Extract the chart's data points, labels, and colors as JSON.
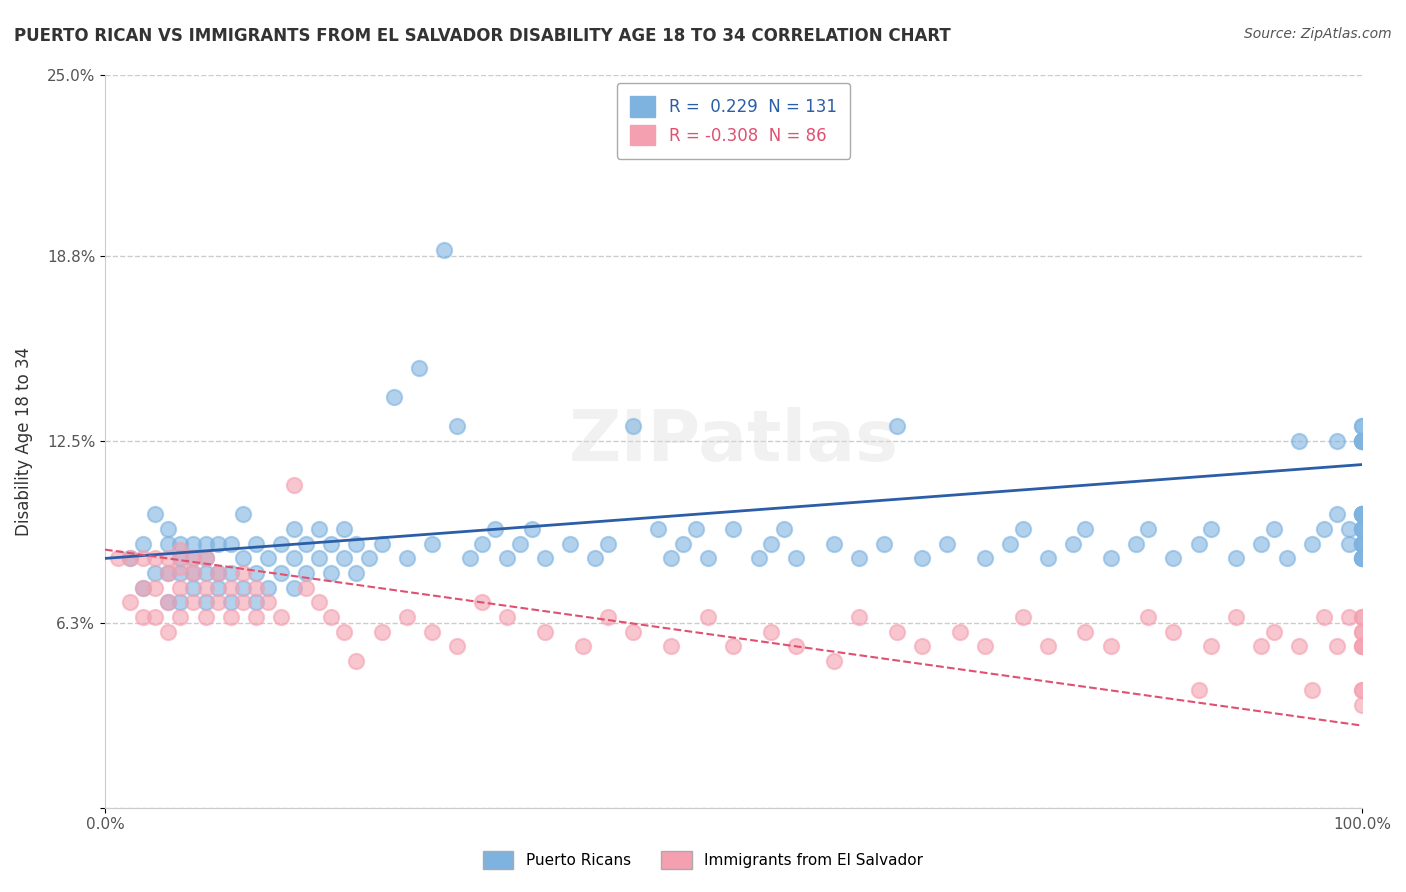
{
  "title": "PUERTO RICAN VS IMMIGRANTS FROM EL SALVADOR DISABILITY AGE 18 TO 34 CORRELATION CHART",
  "source": "Source: ZipAtlas.com",
  "xlabel": "",
  "ylabel": "Disability Age 18 to 34",
  "xlim": [
    0,
    1.0
  ],
  "ylim": [
    0,
    0.25
  ],
  "yticks": [
    0.0,
    0.063,
    0.125,
    0.188,
    0.25
  ],
  "ytick_labels": [
    "",
    "6.3%",
    "12.5%",
    "18.8%",
    "25.0%"
  ],
  "xtick_labels": [
    "0.0%",
    "100.0%"
  ],
  "blue_R": 0.229,
  "blue_N": 131,
  "pink_R": -0.308,
  "pink_N": 86,
  "blue_color": "#7EB3E0",
  "pink_color": "#F4A0B0",
  "blue_line_color": "#2B5EA7",
  "pink_line_color": "#E05070",
  "background_color": "#FFFFFF",
  "grid_color": "#CCCCCC",
  "watermark": "ZIPatlas",
  "legend_label_blue": "Puerto Ricans",
  "legend_label_pink": "Immigrants from El Salvador",
  "blue_scatter_x": [
    0.02,
    0.03,
    0.03,
    0.04,
    0.04,
    0.05,
    0.05,
    0.05,
    0.05,
    0.06,
    0.06,
    0.06,
    0.06,
    0.07,
    0.07,
    0.07,
    0.07,
    0.08,
    0.08,
    0.08,
    0.08,
    0.09,
    0.09,
    0.09,
    0.1,
    0.1,
    0.1,
    0.11,
    0.11,
    0.11,
    0.12,
    0.12,
    0.12,
    0.13,
    0.13,
    0.14,
    0.14,
    0.15,
    0.15,
    0.15,
    0.16,
    0.16,
    0.17,
    0.17,
    0.18,
    0.18,
    0.19,
    0.19,
    0.2,
    0.2,
    0.21,
    0.22,
    0.23,
    0.24,
    0.25,
    0.26,
    0.27,
    0.28,
    0.29,
    0.3,
    0.31,
    0.32,
    0.33,
    0.34,
    0.35,
    0.37,
    0.39,
    0.4,
    0.42,
    0.44,
    0.45,
    0.46,
    0.47,
    0.48,
    0.5,
    0.52,
    0.53,
    0.54,
    0.55,
    0.58,
    0.6,
    0.62,
    0.63,
    0.65,
    0.67,
    0.7,
    0.72,
    0.73,
    0.75,
    0.77,
    0.78,
    0.8,
    0.82,
    0.83,
    0.85,
    0.87,
    0.88,
    0.9,
    0.92,
    0.93,
    0.94,
    0.95,
    0.96,
    0.97,
    0.98,
    0.98,
    0.99,
    0.99,
    1.0,
    1.0,
    1.0,
    1.0,
    1.0,
    1.0,
    1.0,
    1.0,
    1.0,
    1.0,
    1.0,
    1.0,
    1.0,
    1.0,
    1.0,
    1.0,
    1.0,
    1.0,
    1.0,
    1.0,
    1.0,
    1.0,
    1.0
  ],
  "blue_scatter_y": [
    0.085,
    0.075,
    0.09,
    0.08,
    0.1,
    0.07,
    0.08,
    0.09,
    0.095,
    0.07,
    0.08,
    0.085,
    0.09,
    0.075,
    0.08,
    0.085,
    0.09,
    0.07,
    0.08,
    0.085,
    0.09,
    0.075,
    0.08,
    0.09,
    0.07,
    0.08,
    0.09,
    0.075,
    0.085,
    0.1,
    0.07,
    0.08,
    0.09,
    0.075,
    0.085,
    0.08,
    0.09,
    0.075,
    0.085,
    0.095,
    0.08,
    0.09,
    0.085,
    0.095,
    0.08,
    0.09,
    0.085,
    0.095,
    0.08,
    0.09,
    0.085,
    0.09,
    0.14,
    0.085,
    0.15,
    0.09,
    0.19,
    0.13,
    0.085,
    0.09,
    0.095,
    0.085,
    0.09,
    0.095,
    0.085,
    0.09,
    0.085,
    0.09,
    0.13,
    0.095,
    0.085,
    0.09,
    0.095,
    0.085,
    0.095,
    0.085,
    0.09,
    0.095,
    0.085,
    0.09,
    0.085,
    0.09,
    0.13,
    0.085,
    0.09,
    0.085,
    0.09,
    0.095,
    0.085,
    0.09,
    0.095,
    0.085,
    0.09,
    0.095,
    0.085,
    0.09,
    0.095,
    0.085,
    0.09,
    0.095,
    0.085,
    0.125,
    0.09,
    0.095,
    0.1,
    0.125,
    0.09,
    0.095,
    0.1,
    0.125,
    0.085,
    0.09,
    0.095,
    0.1,
    0.125,
    0.13,
    0.085,
    0.09,
    0.095,
    0.1,
    0.125,
    0.085,
    0.09,
    0.095,
    0.1,
    0.125,
    0.13,
    0.085,
    0.09,
    0.095,
    0.1
  ],
  "pink_scatter_x": [
    0.01,
    0.02,
    0.02,
    0.03,
    0.03,
    0.03,
    0.04,
    0.04,
    0.04,
    0.05,
    0.05,
    0.05,
    0.05,
    0.06,
    0.06,
    0.06,
    0.06,
    0.07,
    0.07,
    0.07,
    0.08,
    0.08,
    0.08,
    0.09,
    0.09,
    0.1,
    0.1,
    0.11,
    0.11,
    0.12,
    0.12,
    0.13,
    0.14,
    0.15,
    0.16,
    0.17,
    0.18,
    0.19,
    0.2,
    0.22,
    0.24,
    0.26,
    0.28,
    0.3,
    0.32,
    0.35,
    0.38,
    0.4,
    0.42,
    0.45,
    0.48,
    0.5,
    0.53,
    0.55,
    0.58,
    0.6,
    0.63,
    0.65,
    0.68,
    0.7,
    0.73,
    0.75,
    0.78,
    0.8,
    0.83,
    0.85,
    0.87,
    0.88,
    0.9,
    0.92,
    0.93,
    0.95,
    0.96,
    0.97,
    0.98,
    0.99,
    1.0,
    1.0,
    1.0,
    1.0,
    1.0,
    1.0,
    1.0,
    1.0,
    1.0,
    1.0
  ],
  "pink_scatter_y": [
    0.085,
    0.07,
    0.085,
    0.065,
    0.075,
    0.085,
    0.065,
    0.075,
    0.085,
    0.06,
    0.07,
    0.08,
    0.085,
    0.065,
    0.075,
    0.082,
    0.088,
    0.07,
    0.08,
    0.085,
    0.065,
    0.075,
    0.085,
    0.07,
    0.08,
    0.065,
    0.075,
    0.07,
    0.08,
    0.065,
    0.075,
    0.07,
    0.065,
    0.11,
    0.075,
    0.07,
    0.065,
    0.06,
    0.05,
    0.06,
    0.065,
    0.06,
    0.055,
    0.07,
    0.065,
    0.06,
    0.055,
    0.065,
    0.06,
    0.055,
    0.065,
    0.055,
    0.06,
    0.055,
    0.05,
    0.065,
    0.06,
    0.055,
    0.06,
    0.055,
    0.065,
    0.055,
    0.06,
    0.055,
    0.065,
    0.06,
    0.04,
    0.055,
    0.065,
    0.055,
    0.06,
    0.055,
    0.04,
    0.065,
    0.055,
    0.065,
    0.055,
    0.06,
    0.065,
    0.055,
    0.04,
    0.065,
    0.055,
    0.06,
    0.04,
    0.035
  ],
  "blue_trend_x": [
    0.0,
    1.0
  ],
  "blue_trend_y_start": 0.085,
  "blue_trend_y_end": 0.117,
  "pink_trend_x": [
    0.0,
    1.0
  ],
  "pink_trend_y_start": 0.088,
  "pink_trend_y_end": 0.028
}
